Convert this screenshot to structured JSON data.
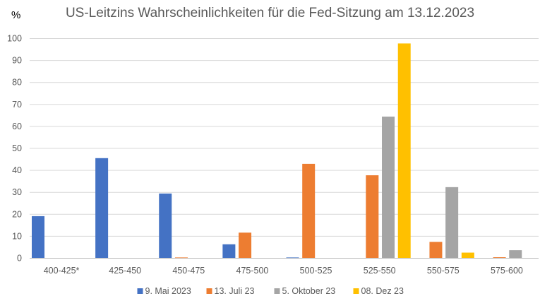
{
  "chart_data": {
    "type": "bar",
    "title": "US-Leitzins Wahrscheinlichkeiten für die Fed-Sitzung am 13.12.2023",
    "unit": "%",
    "xlabel": "",
    "ylabel": "",
    "ylim": [
      0,
      100
    ],
    "yticks": [
      "0",
      "10",
      "20",
      "30",
      "40",
      "50",
      "60",
      "70",
      "80",
      "90",
      "100"
    ],
    "grid": true,
    "legend_position": "bottom",
    "categories": [
      "400-425*",
      "425-450",
      "450-475",
      "475-500",
      "500-525",
      "525-550",
      "550-575",
      "575-600"
    ],
    "series": [
      {
        "name": "9. Mai 2023",
        "color": "#4472C4",
        "values": [
          19.0,
          45.4,
          29.3,
          6.2,
          0.2,
          0,
          0,
          0
        ]
      },
      {
        "name": "13. Juli 23",
        "color": "#ED7D31",
        "values": [
          0,
          0,
          0.2,
          11.5,
          42.8,
          37.6,
          7.3,
          0.3
        ]
      },
      {
        "name": "5. Oktober 23",
        "color": "#A5A5A5",
        "values": [
          0,
          0,
          0,
          0,
          0,
          64.3,
          32.2,
          3.5
        ]
      },
      {
        "name": "08. Dez 23",
        "color": "#FFC000",
        "values": [
          0,
          0,
          0,
          0,
          0,
          97.6,
          2.4,
          0
        ]
      }
    ]
  }
}
